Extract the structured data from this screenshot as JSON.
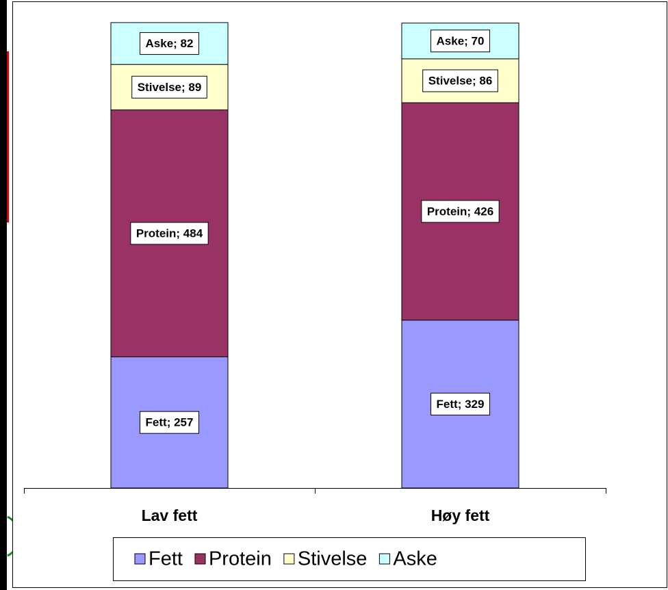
{
  "chart_data": {
    "type": "stacked_bar",
    "categories": [
      "Lav fett",
      "Høy fett"
    ],
    "series": [
      {
        "name": "Fett",
        "color": "#9999ff",
        "values": [
          257,
          329
        ],
        "value_labels": [
          "Fett; 257",
          "Fett; 329"
        ]
      },
      {
        "name": "Protein",
        "color": "#993366",
        "values": [
          484,
          426
        ],
        "value_labels": [
          "Protein; 484",
          "Protein; 426"
        ]
      },
      {
        "name": "Stivelse",
        "color": "#ffffcc",
        "values": [
          89,
          86
        ],
        "value_labels": [
          "Stivelse; 89",
          "Stivelse; 86"
        ]
      },
      {
        "name": "Aske",
        "color": "#ccffff",
        "values": [
          82,
          70
        ],
        "value_labels": [
          "Aske; 82",
          "Aske; 70"
        ]
      }
    ],
    "legend": "bottom"
  }
}
